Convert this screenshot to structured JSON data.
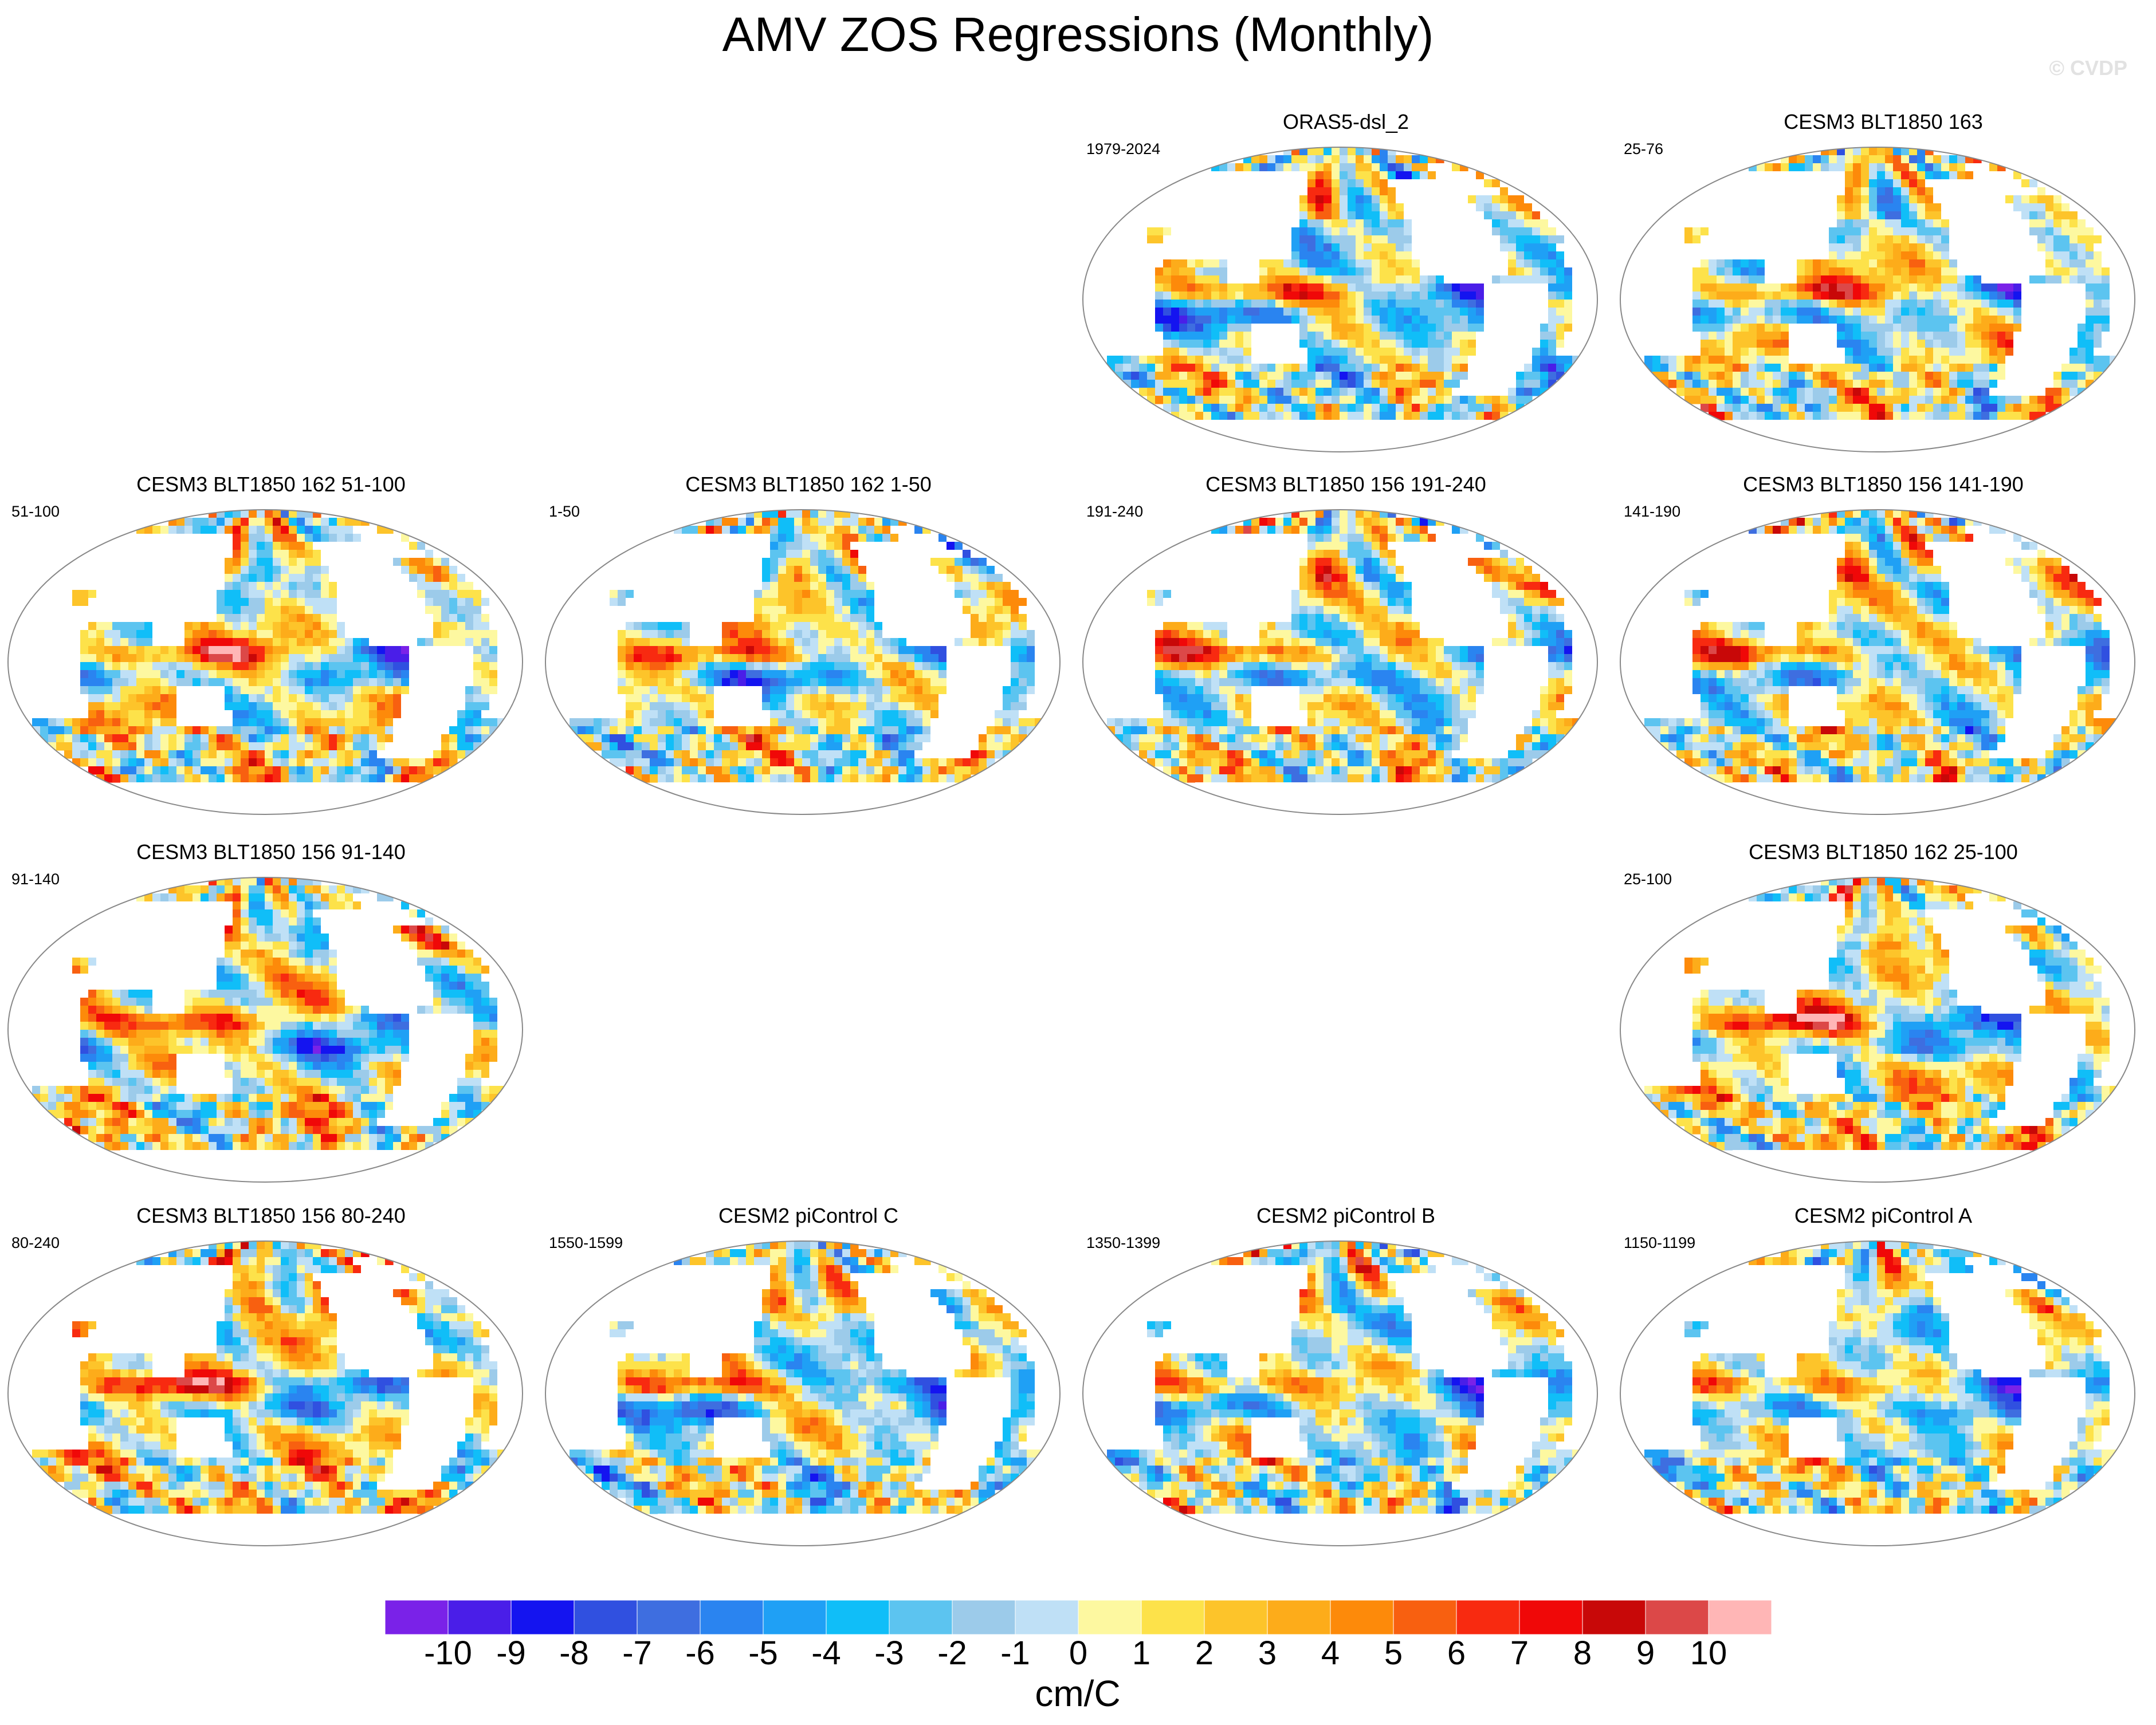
{
  "chart_data": {
    "type": "heatmap",
    "title": "AMV ZOS Regressions (Monthly)",
    "watermark": "© CVDP",
    "units": "cm/C",
    "colorbar": {
      "levels": [
        -10,
        -9,
        -8,
        -7,
        -6,
        -5,
        -4,
        -3,
        -2,
        -1,
        0,
        1,
        2,
        3,
        4,
        5,
        6,
        7,
        8,
        9,
        10
      ],
      "tick_labels": [
        "-10",
        "-9",
        "-8",
        "-7",
        "-6",
        "-5",
        "-4",
        "-3",
        "-2",
        "-1",
        "0",
        "1",
        "2",
        "3",
        "4",
        "5",
        "6",
        "7",
        "8",
        "9",
        "10"
      ],
      "colors": [
        "#7a22e8",
        "#4a1ee8",
        "#1414f0",
        "#3050e0",
        "#3e6ee0",
        "#2a84f0",
        "#1fa0f5",
        "#10bef8",
        "#5cc4f0",
        "#9ccbea",
        "#bfe0f6",
        "#fdf8a0",
        "#fde24a",
        "#fdc42a",
        "#fdac1a",
        "#fd8a0a",
        "#f86010",
        "#f82a10",
        "#f00808",
        "#c80808",
        "#dc4848",
        "#ffb6b6"
      ]
    },
    "panels": [
      {
        "id": "p1",
        "title": "ORAS5-dsl_2",
        "period": "1979-2024",
        "row": 0,
        "col": 2,
        "seed": 11,
        "bias": -0.3
      },
      {
        "id": "p2",
        "title": "CESM3 BLT1850 163",
        "period": "25-76",
        "row": 0,
        "col": 3,
        "seed": 23,
        "bias": 0.6
      },
      {
        "id": "p3",
        "title": "CESM3 BLT1850 162 51-100",
        "period": "51-100",
        "row": 1,
        "col": 0,
        "seed": 37,
        "bias": 0.9
      },
      {
        "id": "p4",
        "title": "CESM3 BLT1850 162 1-50",
        "period": "1-50",
        "row": 1,
        "col": 1,
        "seed": 41,
        "bias": 0.4
      },
      {
        "id": "p5",
        "title": "CESM3 BLT1850 156 191-240",
        "period": "191-240",
        "row": 1,
        "col": 2,
        "seed": 53,
        "bias": 0.5
      },
      {
        "id": "p6",
        "title": "CESM3 BLT1850 156 141-190",
        "period": "141-190",
        "row": 1,
        "col": 3,
        "seed": 67,
        "bias": 0.5
      },
      {
        "id": "p7",
        "title": "CESM3 BLT1850 156 91-140",
        "period": "91-140",
        "row": 2,
        "col": 0,
        "seed": 71,
        "bias": 0.8
      },
      {
        "id": "p8",
        "title": "CESM3 BLT1850 162 25-100",
        "period": "25-100",
        "row": 2,
        "col": 3,
        "seed": 83,
        "bias": 1.0
      },
      {
        "id": "p9",
        "title": "CESM3 BLT1850 156 80-240",
        "period": "80-240",
        "row": 3,
        "col": 0,
        "seed": 97,
        "bias": 1.1
      },
      {
        "id": "p10",
        "title": "CESM2 piControl C",
        "period": "1550-1599",
        "row": 3,
        "col": 1,
        "seed": 101,
        "bias": -0.2
      },
      {
        "id": "p11",
        "title": "CESM2 piControl B",
        "period": "1350-1399",
        "row": 3,
        "col": 2,
        "seed": 113,
        "bias": 0.0
      },
      {
        "id": "p12",
        "title": "CESM2 piControl A",
        "period": "1150-1199",
        "row": 3,
        "col": 3,
        "seed": 127,
        "bias": 0.1
      }
    ]
  }
}
